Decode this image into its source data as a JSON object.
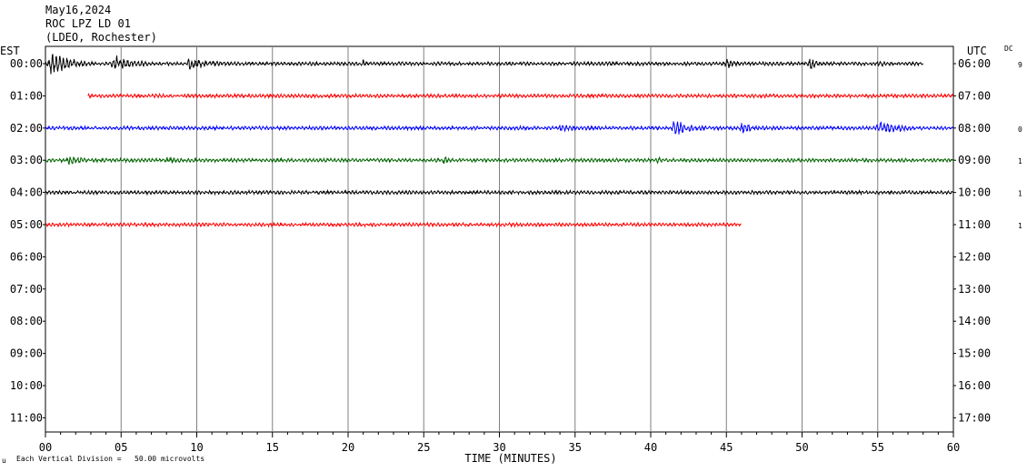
{
  "header": {
    "date": "May16,2024",
    "station": "ROC LPZ LD 01",
    "location": "(LDEO, Rochester)"
  },
  "footer": {
    "scale_prefix": "u",
    "scale_note": "Each Vertical Division =   50.00 microvolts"
  },
  "chart_data": {
    "type": "line",
    "title": "",
    "left_axis_label": "EST",
    "right_axis_label": "UTC",
    "right_extra_label": "DC",
    "xlabel": "TIME (MINUTES)",
    "x_range": [
      0,
      60
    ],
    "x_tick_labels": [
      "00",
      "05",
      "10",
      "15",
      "20",
      "25",
      "30",
      "35",
      "40",
      "45",
      "50",
      "55",
      "60"
    ],
    "grid": true,
    "row_labels_est": [
      "00:00",
      "01:00",
      "02:00",
      "03:00",
      "04:00",
      "05:00",
      "06:00",
      "07:00",
      "08:00",
      "09:00",
      "10:00",
      "11:00"
    ],
    "row_labels_utc": [
      "06:00",
      "07:00",
      "08:00",
      "09:00",
      "10:00",
      "11:00",
      "12:00",
      "13:00",
      "14:00",
      "15:00",
      "16:00",
      "17:00"
    ],
    "dc_values": [
      "9",
      "",
      "0",
      "1",
      "1",
      "1",
      "",
      "",
      "",
      "",
      "",
      ""
    ],
    "traces": [
      {
        "row": 0,
        "color": "#000000",
        "start_min": 0.0,
        "end_min": 58.0,
        "bursts": [
          {
            "at": 0.3,
            "amp": 14,
            "width": 3.0
          },
          {
            "at": 4.5,
            "amp": 10,
            "width": 3.0
          },
          {
            "at": 9.5,
            "amp": 7,
            "width": 4.0
          },
          {
            "at": 21.0,
            "amp": 4,
            "width": 0.8
          },
          {
            "at": 45.0,
            "amp": 6,
            "width": 1.5
          },
          {
            "at": 50.5,
            "amp": 8,
            "width": 1.2
          },
          {
            "at": 55.0,
            "amp": 5,
            "width": 1.2
          }
        ]
      },
      {
        "row": 1,
        "color": "#ff0000",
        "start_min": 2.8,
        "end_min": 60.0,
        "bursts": [
          {
            "at": 2.9,
            "amp": 4,
            "width": 0.3
          }
        ]
      },
      {
        "row": 2,
        "color": "#0000ff",
        "start_min": 0.0,
        "end_min": 60.0,
        "bursts": [
          {
            "at": 34.0,
            "amp": 5,
            "width": 3.0
          },
          {
            "at": 41.5,
            "amp": 9,
            "width": 3.0
          },
          {
            "at": 46.0,
            "amp": 6,
            "width": 3.0
          },
          {
            "at": 55.0,
            "amp": 8,
            "width": 4.0
          }
        ]
      },
      {
        "row": 3,
        "color": "#006400",
        "start_min": 0.0,
        "end_min": 60.0,
        "bursts": [
          {
            "at": 1.5,
            "amp": 5,
            "width": 3.0
          },
          {
            "at": 8.0,
            "amp": 4,
            "width": 3.0
          },
          {
            "at": 26.4,
            "amp": 7,
            "width": 0.4
          },
          {
            "at": 40.5,
            "amp": 4,
            "width": 1.0
          }
        ]
      },
      {
        "row": 4,
        "color": "#000000",
        "start_min": 0.0,
        "end_min": 60.0,
        "bursts": []
      },
      {
        "row": 5,
        "color": "#ff0000",
        "start_min": 0.0,
        "end_min": 46.0,
        "bursts": []
      }
    ],
    "noise_amplitude": 2
  }
}
